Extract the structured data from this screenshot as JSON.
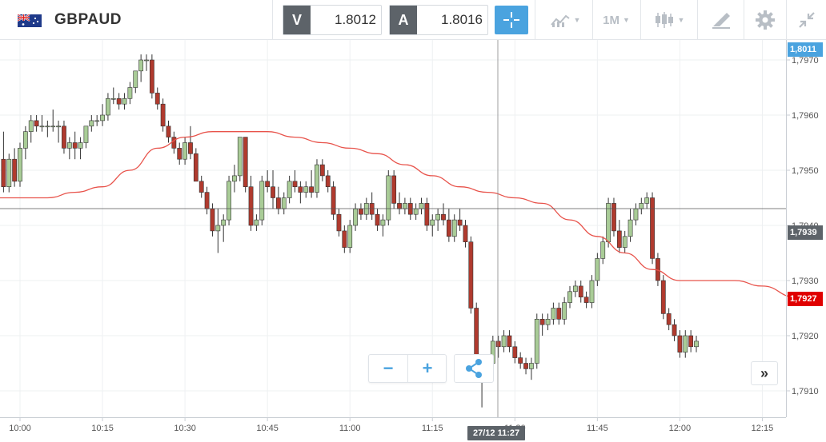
{
  "instrument": {
    "symbol": "GBPAUD",
    "flag_icon": "gb-au-flag-icon"
  },
  "prices": {
    "sell_label": "V",
    "sell_value": "1.8012",
    "buy_label": "A",
    "buy_value": "1.8016"
  },
  "toolbar": {
    "crosshair_icon": "crosshair-icon",
    "indicators_icon": "indicators-icon",
    "timeframe_label": "1M",
    "chart_type_icon": "candlestick-icon",
    "drawing_icon": "drawing-tools-icon",
    "settings_icon": "gear-icon",
    "collapse_icon": "collapse-icon"
  },
  "controls": {
    "zoom_out_label": "−",
    "zoom_in_label": "+",
    "share_icon": "share-icon",
    "jump_label": "»"
  },
  "crosshair": {
    "time_label": "27/12 11:27",
    "price_label": "1,7939"
  },
  "price_badges": {
    "top": "1,8011",
    "current": "1,7927"
  },
  "colors": {
    "accent": "#4aa3df",
    "bull_candle": "#a9cc97",
    "bear_candle": "#b03a2e",
    "moving_average": "#e8534b",
    "badge_current": "#e00000",
    "badge_top": "#4aa3df",
    "badge_crosshair": "#5d6369"
  },
  "chart_data": {
    "type": "candlestick",
    "y_axis": {
      "ticks": [
        "1,7910",
        "1,7920",
        "1,7930",
        "1,7940",
        "1,7950",
        "1,7960",
        "1,7970"
      ],
      "tick_values": [
        1.791,
        1.792,
        1.793,
        1.794,
        1.795,
        1.796,
        1.797
      ]
    },
    "x_axis": {
      "ticks": [
        "10:00",
        "10:15",
        "10:30",
        "10:45",
        "11:00",
        "11:15",
        "11:30",
        "11:45",
        "12:00",
        "12:15"
      ],
      "tick_minutes": [
        0,
        15,
        30,
        45,
        60,
        75,
        90,
        105,
        120,
        135
      ]
    },
    "moving_average": [
      [
        0,
        1.7945
      ],
      [
        5,
        1.7945
      ],
      [
        10,
        1.7946
      ],
      [
        15,
        1.7947
      ],
      [
        20,
        1.795
      ],
      [
        25,
        1.7954
      ],
      [
        30,
        1.7956
      ],
      [
        35,
        1.7957
      ],
      [
        40,
        1.7957
      ],
      [
        45,
        1.7957
      ],
      [
        50,
        1.7956
      ],
      [
        55,
        1.7955
      ],
      [
        60,
        1.7954
      ],
      [
        65,
        1.7953
      ],
      [
        70,
        1.7951
      ],
      [
        75,
        1.7949
      ],
      [
        80,
        1.7947
      ],
      [
        85,
        1.7946
      ],
      [
        90,
        1.7945
      ],
      [
        95,
        1.7944
      ],
      [
        100,
        1.7941
      ],
      [
        105,
        1.7938
      ],
      [
        110,
        1.7935
      ],
      [
        115,
        1.7932
      ],
      [
        120,
        1.793
      ],
      [
        125,
        1.793
      ],
      [
        130,
        1.793
      ],
      [
        135,
        1.7929
      ],
      [
        141,
        1.7927
      ]
    ],
    "candles": [
      [
        -3,
        1.7952,
        1.7957,
        1.7946,
        1.7947
      ],
      [
        -2,
        1.7947,
        1.7953,
        1.7946,
        1.7952
      ],
      [
        -1,
        1.7952,
        1.7954,
        1.7947,
        1.7948
      ],
      [
        0,
        1.7948,
        1.7955,
        1.7947,
        1.7954
      ],
      [
        1,
        1.7954,
        1.7958,
        1.7952,
        1.7957
      ],
      [
        2,
        1.7957,
        1.796,
        1.7955,
        1.7959
      ],
      [
        3,
        1.7959,
        1.796,
        1.7957,
        1.7958
      ],
      [
        4,
        1.7958,
        1.796,
        1.7957,
        1.7958
      ],
      [
        5,
        1.7958,
        1.7959,
        1.7956,
        1.7958
      ],
      [
        6,
        1.7958,
        1.7961,
        1.7957,
        1.7958
      ],
      [
        7,
        1.7958,
        1.7959,
        1.7955,
        1.7958
      ],
      [
        8,
        1.7958,
        1.7959,
        1.7953,
        1.7954
      ],
      [
        9,
        1.7954,
        1.7956,
        1.7952,
        1.7955
      ],
      [
        10,
        1.7955,
        1.7957,
        1.7952,
        1.7954
      ],
      [
        11,
        1.7954,
        1.7956,
        1.7952,
        1.7955
      ],
      [
        12,
        1.7955,
        1.7958,
        1.7954,
        1.7958
      ],
      [
        13,
        1.7958,
        1.796,
        1.7957,
        1.7959
      ],
      [
        14,
        1.7959,
        1.796,
        1.7958,
        1.7959
      ],
      [
        15,
        1.7959,
        1.7962,
        1.7958,
        1.796
      ],
      [
        16,
        1.796,
        1.7964,
        1.7959,
        1.7963
      ],
      [
        17,
        1.7963,
        1.7965,
        1.7962,
        1.7963
      ],
      [
        18,
        1.7963,
        1.7964,
        1.7961,
        1.7962
      ],
      [
        19,
        1.7962,
        1.7964,
        1.7961,
        1.7963
      ],
      [
        20,
        1.7963,
        1.7966,
        1.7962,
        1.7965
      ],
      [
        21,
        1.7965,
        1.7968,
        1.7964,
        1.7968
      ],
      [
        22,
        1.7968,
        1.7971,
        1.7966,
        1.797
      ],
      [
        23,
        1.797,
        1.7971,
        1.7968,
        1.797
      ],
      [
        24,
        1.797,
        1.7971,
        1.7963,
        1.7964
      ],
      [
        25,
        1.7964,
        1.7965,
        1.7961,
        1.7962
      ],
      [
        26,
        1.7962,
        1.7963,
        1.7957,
        1.7958
      ],
      [
        27,
        1.7958,
        1.7959,
        1.7955,
        1.7956
      ],
      [
        28,
        1.7956,
        1.7957,
        1.7953,
        1.7954
      ],
      [
        29,
        1.7954,
        1.7955,
        1.7951,
        1.7952
      ],
      [
        30,
        1.7952,
        1.7956,
        1.7951,
        1.7955
      ],
      [
        31,
        1.7955,
        1.7958,
        1.7952,
        1.7953
      ],
      [
        32,
        1.7953,
        1.7954,
        1.7948,
        1.7948
      ],
      [
        33,
        1.7948,
        1.7949,
        1.7945,
        1.7946
      ],
      [
        34,
        1.7946,
        1.7947,
        1.7942,
        1.7943
      ],
      [
        35,
        1.7943,
        1.7944,
        1.7938,
        1.7939
      ],
      [
        36,
        1.7939,
        1.7943,
        1.7935,
        1.794
      ],
      [
        37,
        1.794,
        1.7942,
        1.7937,
        1.7941
      ],
      [
        38,
        1.7941,
        1.7949,
        1.794,
        1.7948
      ],
      [
        39,
        1.7948,
        1.7951,
        1.7946,
        1.7949
      ],
      [
        40,
        1.7949,
        1.7956,
        1.7948,
        1.7956
      ],
      [
        41,
        1.7956,
        1.7956,
        1.7946,
        1.7947
      ],
      [
        42,
        1.7947,
        1.7949,
        1.7939,
        1.794
      ],
      [
        43,
        1.794,
        1.7942,
        1.7939,
        1.7941
      ],
      [
        44,
        1.7941,
        1.7949,
        1.794,
        1.7948
      ],
      [
        45,
        1.7948,
        1.795,
        1.7946,
        1.7947
      ],
      [
        46,
        1.7947,
        1.795,
        1.7943,
        1.7945
      ],
      [
        47,
        1.7945,
        1.7947,
        1.7942,
        1.7943
      ],
      [
        48,
        1.7943,
        1.7946,
        1.7942,
        1.7945
      ],
      [
        49,
        1.7945,
        1.7949,
        1.7944,
        1.7948
      ],
      [
        50,
        1.7948,
        1.795,
        1.7946,
        1.7947
      ],
      [
        51,
        1.7947,
        1.7948,
        1.7944,
        1.7946
      ],
      [
        52,
        1.7946,
        1.7948,
        1.7945,
        1.7947
      ],
      [
        53,
        1.7947,
        1.795,
        1.7945,
        1.7946
      ],
      [
        54,
        1.7946,
        1.7952,
        1.7945,
        1.7951
      ],
      [
        55,
        1.7951,
        1.7952,
        1.7948,
        1.7949
      ],
      [
        56,
        1.7949,
        1.795,
        1.7946,
        1.7947
      ],
      [
        57,
        1.7947,
        1.7948,
        1.7941,
        1.7942
      ],
      [
        58,
        1.7942,
        1.7943,
        1.7938,
        1.7939
      ],
      [
        59,
        1.7939,
        1.794,
        1.7935,
        1.7936
      ],
      [
        60,
        1.7936,
        1.7941,
        1.7935,
        1.794
      ],
      [
        61,
        1.794,
        1.7944,
        1.7939,
        1.7943
      ],
      [
        62,
        1.7943,
        1.7944,
        1.7941,
        1.7942
      ],
      [
        63,
        1.7942,
        1.7945,
        1.7941,
        1.7944
      ],
      [
        64,
        1.7944,
        1.7946,
        1.7941,
        1.7942
      ],
      [
        65,
        1.7942,
        1.7943,
        1.7939,
        1.794
      ],
      [
        66,
        1.794,
        1.7942,
        1.7938,
        1.7941
      ],
      [
        67,
        1.7941,
        1.795,
        1.794,
        1.7949
      ],
      [
        68,
        1.7949,
        1.795,
        1.7943,
        1.7944
      ],
      [
        69,
        1.7944,
        1.7946,
        1.7942,
        1.7943
      ],
      [
        70,
        1.7943,
        1.7945,
        1.7942,
        1.7944
      ],
      [
        71,
        1.7944,
        1.7945,
        1.7941,
        1.7942
      ],
      [
        72,
        1.7942,
        1.7944,
        1.7941,
        1.7943
      ],
      [
        73,
        1.7943,
        1.7945,
        1.7942,
        1.7944
      ],
      [
        74,
        1.7944,
        1.7945,
        1.7939,
        1.794
      ],
      [
        75,
        1.794,
        1.7942,
        1.7938,
        1.7941
      ],
      [
        76,
        1.7941,
        1.7943,
        1.7939,
        1.7942
      ],
      [
        77,
        1.7942,
        1.7944,
        1.794,
        1.7941
      ],
      [
        78,
        1.7941,
        1.7943,
        1.7937,
        1.7938
      ],
      [
        79,
        1.7938,
        1.7942,
        1.7937,
        1.7941
      ],
      [
        80,
        1.7941,
        1.7943,
        1.7939,
        1.794
      ],
      [
        81,
        1.794,
        1.7941,
        1.7936,
        1.7937
      ],
      [
        82,
        1.7937,
        1.7938,
        1.7924,
        1.7925
      ],
      [
        83,
        1.7925,
        1.7926,
        1.7912,
        1.7913
      ],
      [
        84,
        1.7913,
        1.7916,
        1.7907,
        1.7914
      ],
      [
        85,
        1.7914,
        1.7916,
        1.7912,
        1.7915
      ],
      [
        86,
        1.7915,
        1.792,
        1.7914,
        1.7919
      ],
      [
        87,
        1.7919,
        1.792,
        1.7916,
        1.7918
      ],
      [
        88,
        1.7918,
        1.7921,
        1.7917,
        1.792
      ],
      [
        89,
        1.792,
        1.7921,
        1.7917,
        1.7918
      ],
      [
        90,
        1.7918,
        1.7919,
        1.7915,
        1.7916
      ],
      [
        91,
        1.7916,
        1.7917,
        1.7914,
        1.7915
      ],
      [
        92,
        1.7915,
        1.7916,
        1.7913,
        1.7914
      ],
      [
        93,
        1.7914,
        1.7916,
        1.7912,
        1.7915
      ],
      [
        94,
        1.7915,
        1.7924,
        1.7914,
        1.7923
      ],
      [
        95,
        1.7923,
        1.7924,
        1.792,
        1.7922
      ],
      [
        96,
        1.7922,
        1.7924,
        1.7921,
        1.7923
      ],
      [
        97,
        1.7923,
        1.7926,
        1.7922,
        1.7925
      ],
      [
        98,
        1.7925,
        1.7926,
        1.7922,
        1.7923
      ],
      [
        99,
        1.7923,
        1.7927,
        1.7922,
        1.7926
      ],
      [
        100,
        1.7926,
        1.7929,
        1.7925,
        1.7928
      ],
      [
        101,
        1.7928,
        1.793,
        1.7927,
        1.7929
      ],
      [
        102,
        1.7929,
        1.793,
        1.7926,
        1.7927
      ],
      [
        103,
        1.7927,
        1.7928,
        1.7925,
        1.7926
      ],
      [
        104,
        1.7926,
        1.7931,
        1.7925,
        1.793
      ],
      [
        105,
        1.793,
        1.7935,
        1.7929,
        1.7934
      ],
      [
        106,
        1.7934,
        1.7938,
        1.7933,
        1.7937
      ],
      [
        107,
        1.7937,
        1.7945,
        1.7936,
        1.7944
      ],
      [
        108,
        1.7944,
        1.7945,
        1.7938,
        1.7939
      ],
      [
        109,
        1.7939,
        1.7941,
        1.7935,
        1.7936
      ],
      [
        110,
        1.7936,
        1.7939,
        1.7935,
        1.7938
      ],
      [
        111,
        1.7938,
        1.7943,
        1.7937,
        1.7941
      ],
      [
        112,
        1.7941,
        1.7944,
        1.794,
        1.7943
      ],
      [
        113,
        1.7943,
        1.7945,
        1.7942,
        1.7944
      ],
      [
        114,
        1.7944,
        1.7946,
        1.7943,
        1.7945
      ],
      [
        115,
        1.7945,
        1.7946,
        1.7933,
        1.7934
      ],
      [
        116,
        1.7934,
        1.7935,
        1.7929,
        1.793
      ],
      [
        117,
        1.793,
        1.7931,
        1.7923,
        1.7924
      ],
      [
        118,
        1.7924,
        1.7925,
        1.7921,
        1.7922
      ],
      [
        119,
        1.7922,
        1.7923,
        1.7919,
        1.792
      ],
      [
        120,
        1.792,
        1.7921,
        1.7916,
        1.7917
      ],
      [
        121,
        1.7917,
        1.7921,
        1.7916,
        1.792
      ],
      [
        122,
        1.792,
        1.7921,
        1.7917,
        1.7918
      ],
      [
        123,
        1.7918,
        1.792,
        1.7917,
        1.7919
      ]
    ]
  }
}
